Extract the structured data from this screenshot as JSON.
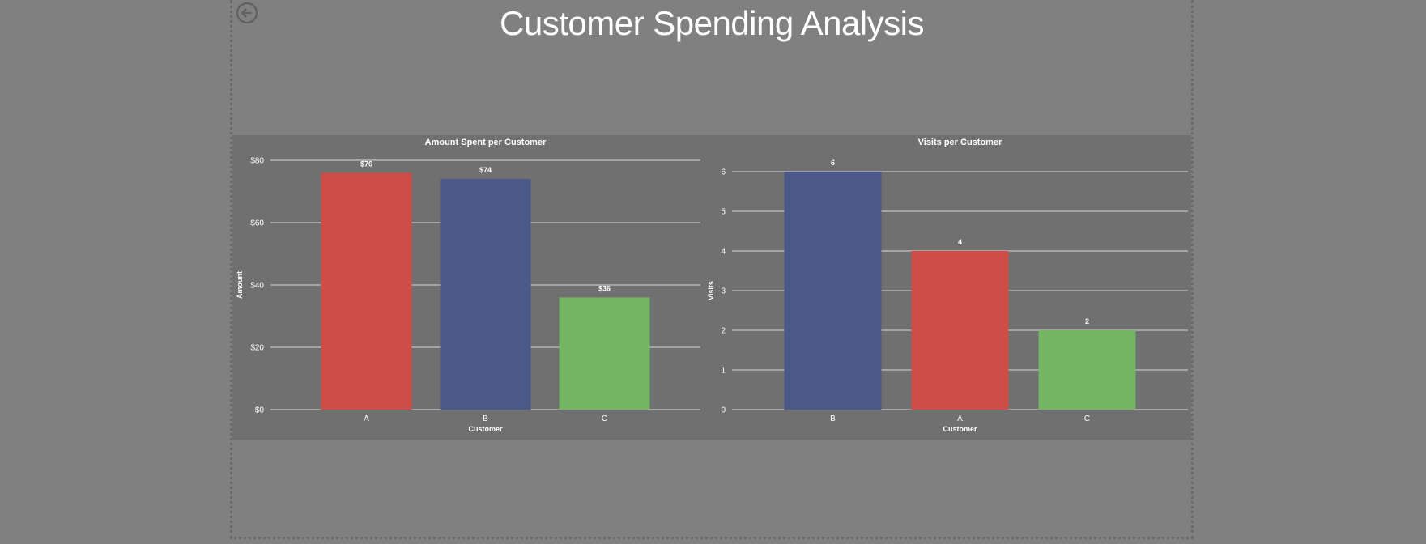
{
  "page": {
    "title": "Customer Spending Analysis",
    "background": "#808080",
    "panel_background": "#707070"
  },
  "toolbar": {
    "back_icon": "arrow-left-circle-icon"
  },
  "chart_data": [
    {
      "type": "bar",
      "title": "Amount Spent per Customer",
      "xlabel": "Customer",
      "ylabel": "Amount",
      "categories": [
        "A",
        "B",
        "C"
      ],
      "values": [
        76,
        74,
        36
      ],
      "data_labels": [
        "$76",
        "$74",
        "$36"
      ],
      "colors": [
        "#CC4E47",
        "#4A5989",
        "#74B663"
      ],
      "ylim": [
        0,
        80
      ],
      "yticks": [
        0,
        20,
        40,
        60,
        80
      ],
      "ytick_labels": [
        "$0",
        "$20",
        "$40",
        "$60",
        "$80"
      ],
      "grid": true,
      "legend": "none"
    },
    {
      "type": "bar",
      "title": "Visits per Customer",
      "xlabel": "Customer",
      "ylabel": "Visits",
      "categories": [
        "B",
        "A",
        "C"
      ],
      "values": [
        6,
        4,
        2
      ],
      "data_labels": [
        "6",
        "4",
        "2"
      ],
      "colors": [
        "#4A5989",
        "#CC4E47",
        "#74B663"
      ],
      "ylim": [
        0,
        6
      ],
      "yticks": [
        0,
        1,
        2,
        3,
        4,
        5,
        6
      ],
      "ytick_labels": [
        "0",
        "1",
        "2",
        "3",
        "4",
        "5",
        "6"
      ],
      "grid": true,
      "legend": "none"
    }
  ]
}
